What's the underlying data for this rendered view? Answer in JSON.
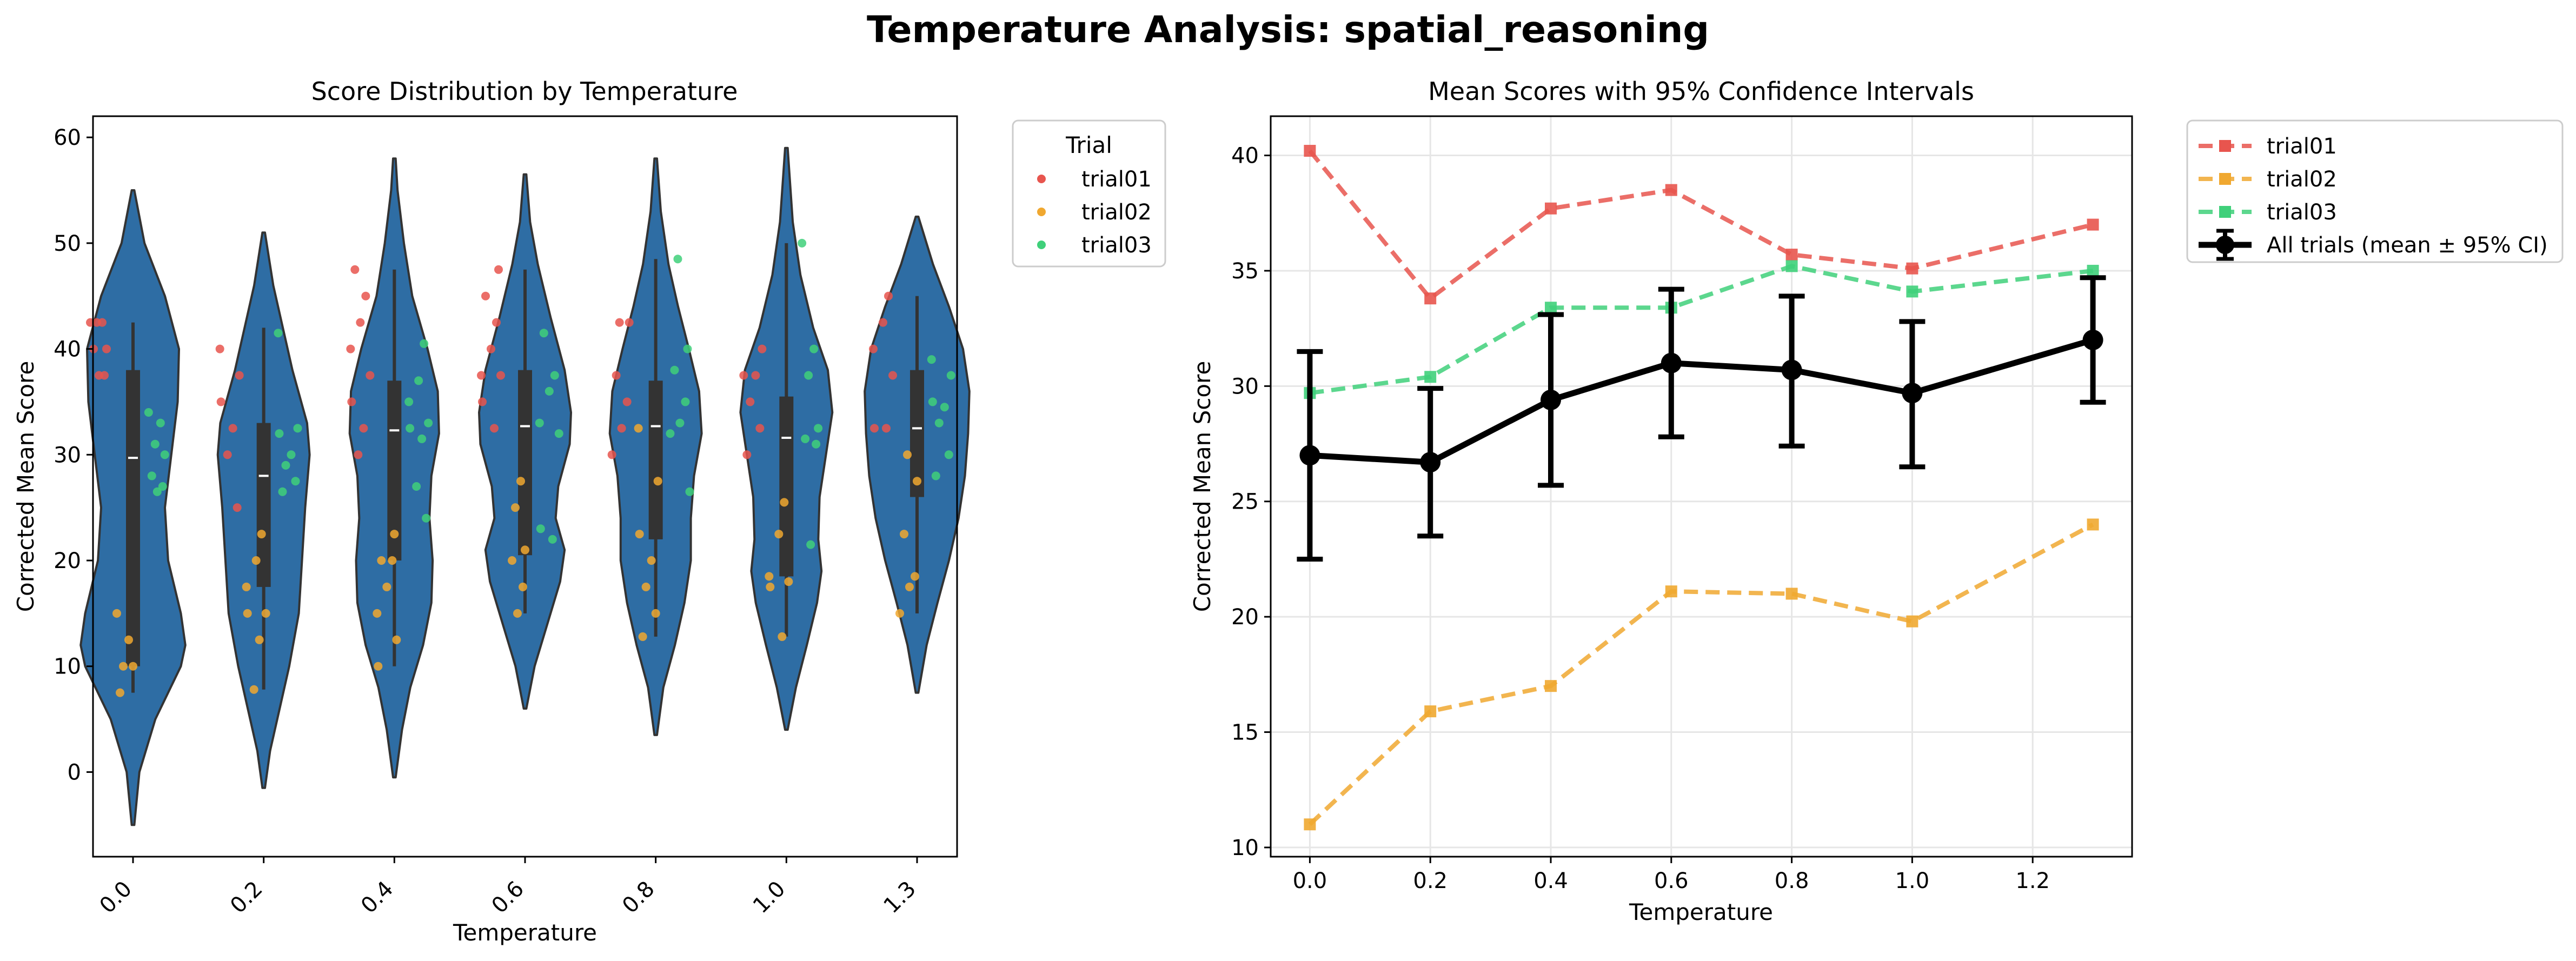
{
  "figure": {
    "suptitle": "Temperature Analysis: spatial_reasoning"
  },
  "chart_data": [
    {
      "type": "violin",
      "title": "Score Distribution by Temperature",
      "xlabel": "Temperature",
      "ylabel": "Corrected Mean Score",
      "categories": [
        "0.0",
        "0.2",
        "0.4",
        "0.6",
        "0.8",
        "1.0",
        "1.3"
      ],
      "ylim": [
        -8,
        62
      ],
      "yticks": [
        0,
        10,
        20,
        30,
        40,
        50,
        60
      ],
      "violin_color": "#2e6da4",
      "violins": [
        {
          "min": -5,
          "max": 55,
          "q1": 10,
          "median": 29.7,
          "q3": 38,
          "whisker_low": 7.5,
          "whisker_high": 42.5,
          "density": [
            [
              -5,
              0.02
            ],
            [
              0,
              0.1
            ],
            [
              5,
              0.35
            ],
            [
              10,
              0.75
            ],
            [
              12,
              0.82
            ],
            [
              15,
              0.75
            ],
            [
              20,
              0.55
            ],
            [
              25,
              0.5
            ],
            [
              30,
              0.6
            ],
            [
              35,
              0.7
            ],
            [
              40,
              0.72
            ],
            [
              45,
              0.5
            ],
            [
              50,
              0.18
            ],
            [
              55,
              0.02
            ]
          ]
        },
        {
          "min": -1.5,
          "max": 51,
          "q1": 17.5,
          "median": 28,
          "q3": 33,
          "whisker_low": 7.8,
          "whisker_high": 42,
          "density": [
            [
              -1.5,
              0.02
            ],
            [
              2,
              0.1
            ],
            [
              6,
              0.25
            ],
            [
              10,
              0.4
            ],
            [
              15,
              0.55
            ],
            [
              20,
              0.6
            ],
            [
              25,
              0.65
            ],
            [
              30,
              0.72
            ],
            [
              33,
              0.68
            ],
            [
              38,
              0.45
            ],
            [
              42,
              0.3
            ],
            [
              46,
              0.15
            ],
            [
              51,
              0.02
            ]
          ]
        },
        {
          "min": -0.5,
          "max": 58,
          "q1": 20,
          "median": 32.3,
          "q3": 37,
          "whisker_low": 10,
          "whisker_high": 47.5,
          "density": [
            [
              -0.5,
              0.02
            ],
            [
              4,
              0.12
            ],
            [
              8,
              0.25
            ],
            [
              12,
              0.45
            ],
            [
              16,
              0.58
            ],
            [
              20,
              0.6
            ],
            [
              24,
              0.55
            ],
            [
              28,
              0.58
            ],
            [
              32,
              0.7
            ],
            [
              36,
              0.68
            ],
            [
              40,
              0.52
            ],
            [
              45,
              0.28
            ],
            [
              50,
              0.15
            ],
            [
              55,
              0.05
            ],
            [
              58,
              0.02
            ]
          ]
        },
        {
          "min": 6,
          "max": 56.5,
          "q1": 20.5,
          "median": 32.7,
          "q3": 38,
          "whisker_low": 15,
          "whisker_high": 47.5,
          "density": [
            [
              6,
              0.02
            ],
            [
              10,
              0.15
            ],
            [
              14,
              0.35
            ],
            [
              18,
              0.55
            ],
            [
              21,
              0.62
            ],
            [
              24,
              0.48
            ],
            [
              27,
              0.52
            ],
            [
              31,
              0.7
            ],
            [
              34,
              0.72
            ],
            [
              38,
              0.62
            ],
            [
              43,
              0.4
            ],
            [
              48,
              0.2
            ],
            [
              52,
              0.08
            ],
            [
              56.5,
              0.02
            ]
          ]
        },
        {
          "min": 3.5,
          "max": 58,
          "q1": 22,
          "median": 32.7,
          "q3": 37,
          "whisker_low": 12.8,
          "whisker_high": 48.5,
          "density": [
            [
              3.5,
              0.02
            ],
            [
              8,
              0.12
            ],
            [
              12,
              0.3
            ],
            [
              16,
              0.45
            ],
            [
              20,
              0.55
            ],
            [
              24,
              0.55
            ],
            [
              28,
              0.6
            ],
            [
              32,
              0.72
            ],
            [
              36,
              0.68
            ],
            [
              40,
              0.52
            ],
            [
              44,
              0.35
            ],
            [
              48,
              0.2
            ],
            [
              53,
              0.08
            ],
            [
              58,
              0.02
            ]
          ]
        },
        {
          "min": 4,
          "max": 59,
          "q1": 18.5,
          "median": 31.6,
          "q3": 35.5,
          "whisker_low": 12.8,
          "whisker_high": 50,
          "density": [
            [
              4,
              0.02
            ],
            [
              8,
              0.15
            ],
            [
              12,
              0.32
            ],
            [
              16,
              0.48
            ],
            [
              19,
              0.55
            ],
            [
              22,
              0.5
            ],
            [
              26,
              0.52
            ],
            [
              30,
              0.62
            ],
            [
              34,
              0.72
            ],
            [
              38,
              0.65
            ],
            [
              42,
              0.42
            ],
            [
              47,
              0.22
            ],
            [
              52,
              0.1
            ],
            [
              59,
              0.02
            ]
          ]
        },
        {
          "min": 7.5,
          "max": 52.5,
          "q1": 26,
          "median": 32.5,
          "q3": 38,
          "whisker_low": 15,
          "whisker_high": 45,
          "density": [
            [
              7.5,
              0.02
            ],
            [
              12,
              0.15
            ],
            [
              16,
              0.32
            ],
            [
              20,
              0.5
            ],
            [
              24,
              0.65
            ],
            [
              28,
              0.75
            ],
            [
              32,
              0.8
            ],
            [
              36,
              0.82
            ],
            [
              40,
              0.72
            ],
            [
              44,
              0.5
            ],
            [
              48,
              0.25
            ],
            [
              52.5,
              0.02
            ]
          ]
        }
      ],
      "legend": {
        "title": "Trial",
        "entries": [
          {
            "name": "trial01",
            "color": "#e8554e"
          },
          {
            "name": "trial02",
            "color": "#f0a830"
          },
          {
            "name": "trial03",
            "color": "#3fd07a"
          }
        ]
      },
      "strip_points": {
        "trial01": [
          [
            0,
            42.5
          ],
          [
            0,
            42.5
          ],
          [
            0,
            42.5
          ],
          [
            0,
            40
          ],
          [
            0,
            40
          ],
          [
            0,
            37.5
          ],
          [
            0,
            37.5
          ],
          [
            1,
            40
          ],
          [
            1,
            37.5
          ],
          [
            1,
            35
          ],
          [
            1,
            32.5
          ],
          [
            1,
            30
          ],
          [
            1,
            25
          ],
          [
            2,
            47.5
          ],
          [
            2,
            45
          ],
          [
            2,
            42.5
          ],
          [
            2,
            40
          ],
          [
            2,
            37.5
          ],
          [
            2,
            35
          ],
          [
            2,
            32.5
          ],
          [
            2,
            30
          ],
          [
            3,
            47.5
          ],
          [
            3,
            45
          ],
          [
            3,
            42.5
          ],
          [
            3,
            40
          ],
          [
            3,
            37.5
          ],
          [
            3,
            37.5
          ],
          [
            3,
            35
          ],
          [
            3,
            32.5
          ],
          [
            4,
            42.5
          ],
          [
            4,
            42.5
          ],
          [
            4,
            37.5
          ],
          [
            4,
            35
          ],
          [
            4,
            32.5
          ],
          [
            4,
            30
          ],
          [
            5,
            40
          ],
          [
            5,
            37.5
          ],
          [
            5,
            37.5
          ],
          [
            5,
            35
          ],
          [
            5,
            32.5
          ],
          [
            5,
            30
          ],
          [
            6,
            45
          ],
          [
            6,
            42.5
          ],
          [
            6,
            40
          ],
          [
            6,
            37.5
          ],
          [
            6,
            32.5
          ],
          [
            6,
            32.5
          ]
        ],
        "trial02": [
          [
            0,
            15
          ],
          [
            0,
            12.5
          ],
          [
            0,
            10
          ],
          [
            0,
            10
          ],
          [
            0,
            7.5
          ],
          [
            1,
            22.5
          ],
          [
            1,
            20
          ],
          [
            1,
            17.5
          ],
          [
            1,
            15
          ],
          [
            1,
            15
          ],
          [
            1,
            12.5
          ],
          [
            1,
            7.8
          ],
          [
            2,
            22.5
          ],
          [
            2,
            20
          ],
          [
            2,
            20
          ],
          [
            2,
            17.5
          ],
          [
            2,
            15
          ],
          [
            2,
            12.5
          ],
          [
            2,
            10
          ],
          [
            3,
            27.5
          ],
          [
            3,
            25
          ],
          [
            3,
            21
          ],
          [
            3,
            20
          ],
          [
            3,
            17.5
          ],
          [
            3,
            15
          ],
          [
            4,
            32.5
          ],
          [
            4,
            27.5
          ],
          [
            4,
            22.5
          ],
          [
            4,
            20
          ],
          [
            4,
            17.5
          ],
          [
            4,
            15
          ],
          [
            4,
            12.8
          ],
          [
            5,
            25.5
          ],
          [
            5,
            22.5
          ],
          [
            5,
            18.5
          ],
          [
            5,
            18
          ],
          [
            5,
            17.5
          ],
          [
            5,
            12.8
          ],
          [
            6,
            30
          ],
          [
            6,
            27.5
          ],
          [
            6,
            22.5
          ],
          [
            6,
            18.5
          ],
          [
            6,
            17.5
          ],
          [
            6,
            15
          ]
        ],
        "trial03": [
          [
            0,
            34
          ],
          [
            0,
            33
          ],
          [
            0,
            31
          ],
          [
            0,
            30
          ],
          [
            0,
            28
          ],
          [
            0,
            27
          ],
          [
            0,
            26.5
          ],
          [
            1,
            41.5
          ],
          [
            1,
            32.5
          ],
          [
            1,
            32
          ],
          [
            1,
            30
          ],
          [
            1,
            29
          ],
          [
            1,
            27.5
          ],
          [
            1,
            26.5
          ],
          [
            2,
            40.5
          ],
          [
            2,
            37
          ],
          [
            2,
            35
          ],
          [
            2,
            33
          ],
          [
            2,
            32.5
          ],
          [
            2,
            31.5
          ],
          [
            2,
            27
          ],
          [
            2,
            24
          ],
          [
            3,
            41.5
          ],
          [
            3,
            37.5
          ],
          [
            3,
            36
          ],
          [
            3,
            33
          ],
          [
            3,
            32
          ],
          [
            3,
            23
          ],
          [
            3,
            22
          ],
          [
            4,
            48.5
          ],
          [
            4,
            40
          ],
          [
            4,
            38
          ],
          [
            4,
            35
          ],
          [
            4,
            33
          ],
          [
            4,
            32
          ],
          [
            4,
            26.5
          ],
          [
            5,
            50
          ],
          [
            5,
            40
          ],
          [
            5,
            37.5
          ],
          [
            5,
            32.5
          ],
          [
            5,
            31.5
          ],
          [
            5,
            31
          ],
          [
            5,
            21.5
          ],
          [
            6,
            39
          ],
          [
            6,
            37.5
          ],
          [
            6,
            35
          ],
          [
            6,
            34.5
          ],
          [
            6,
            33
          ],
          [
            6,
            30
          ],
          [
            6,
            28
          ]
        ]
      }
    },
    {
      "type": "line",
      "title": "Mean Scores with 95% Confidence Intervals",
      "xlabel": "Temperature",
      "ylabel": "Corrected Mean Score",
      "x": [
        0.0,
        0.2,
        0.4,
        0.6,
        0.8,
        1.0,
        1.3
      ],
      "xlim": [
        -0.065,
        1.365
      ],
      "ylim": [
        9.6,
        41.7
      ],
      "xticks": [
        "0.0",
        "0.2",
        "0.4",
        "0.6",
        "0.8",
        "1.0",
        "1.2"
      ],
      "xtick_values": [
        0.0,
        0.2,
        0.4,
        0.6,
        0.8,
        1.0,
        1.2
      ],
      "yticks": [
        10,
        15,
        20,
        25,
        30,
        35,
        40
      ],
      "grid": true,
      "series": [
        {
          "name": "trial01",
          "color": "#e8554e",
          "marker": "square",
          "style": "dashed",
          "values": [
            40.2,
            33.8,
            37.7,
            38.5,
            35.7,
            35.1,
            37.0
          ]
        },
        {
          "name": "trial02",
          "color": "#f0a830",
          "marker": "square",
          "style": "dashed",
          "values": [
            11.0,
            15.9,
            17.0,
            21.1,
            21.0,
            19.8,
            24.0
          ]
        },
        {
          "name": "trial03",
          "color": "#3fd07a",
          "marker": "square",
          "style": "dashed",
          "values": [
            29.7,
            30.4,
            33.4,
            33.4,
            35.2,
            34.1,
            35.0
          ]
        },
        {
          "name": "All trials (mean ± 95% CI)",
          "color": "#000000",
          "marker": "circle",
          "style": "solid",
          "values": [
            27.0,
            26.7,
            29.4,
            31.0,
            30.7,
            29.7,
            32.0
          ],
          "ci_low": [
            22.5,
            23.5,
            25.7,
            27.8,
            27.4,
            26.5,
            29.3
          ],
          "ci_high": [
            31.5,
            29.9,
            33.1,
            34.2,
            33.9,
            32.8,
            34.7
          ]
        }
      ],
      "legend_position": "outside-top-right"
    }
  ]
}
